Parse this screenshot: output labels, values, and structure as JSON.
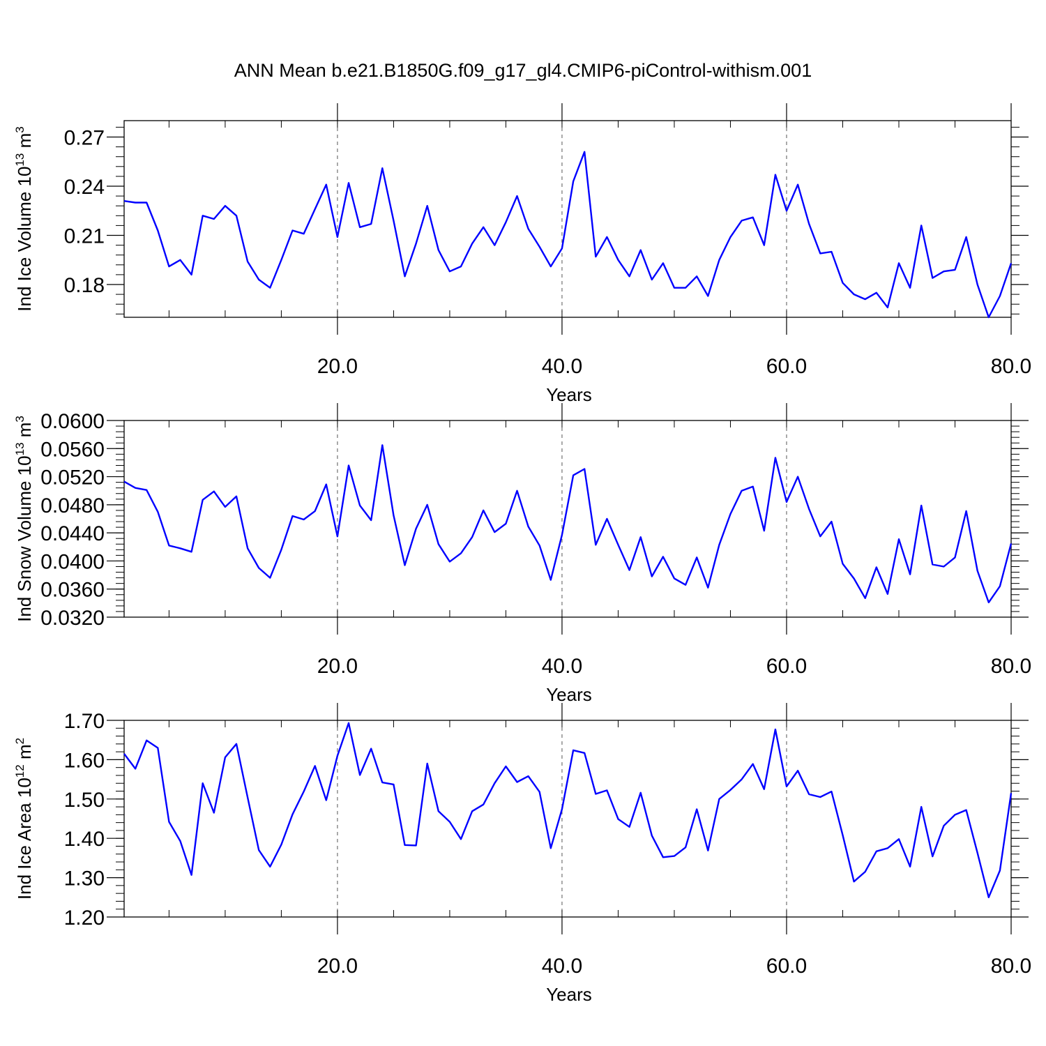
{
  "title": "ANN Mean b.e21.B1850G.f09_g17_gl4.CMIP6-piControl-withism.001",
  "line_color": "#0000ff",
  "chart_data": [
    {
      "type": "line",
      "ylabel_parts": [
        "Ind Ice Volume 10",
        "13",
        " m",
        "3"
      ],
      "xlabel": "Years",
      "xlim": [
        1,
        80
      ],
      "ylim": [
        0.16,
        0.28
      ],
      "xticks": [
        20,
        40,
        60,
        80
      ],
      "xtick_labels": [
        "20.0",
        "40.0",
        "60.0",
        "80.0"
      ],
      "yticks": [
        0.18,
        0.21,
        0.24,
        0.27
      ],
      "ytick_labels": [
        "0.18",
        "0.21",
        "0.24",
        "0.27"
      ],
      "grid_x": [
        20,
        40,
        60
      ],
      "series": [
        {
          "x": [
            1,
            2,
            3,
            4,
            5,
            6,
            7,
            8,
            9,
            10,
            11,
            12,
            13,
            14,
            15,
            16,
            17,
            18,
            19,
            20,
            21,
            22,
            23,
            24,
            25,
            26,
            27,
            28,
            29,
            30,
            31,
            32,
            33,
            34,
            35,
            36,
            37,
            38,
            39,
            40,
            41,
            42,
            43,
            44,
            45,
            46,
            47,
            48,
            49,
            50,
            51,
            52,
            53,
            54,
            55,
            56,
            57,
            58,
            59,
            60,
            61,
            62,
            63,
            64,
            65,
            66,
            67,
            68,
            69,
            70,
            71,
            72,
            73,
            74,
            75,
            76,
            77,
            78,
            79,
            80
          ],
          "values": [
            0.231,
            0.23,
            0.23,
            0.213,
            0.191,
            0.195,
            0.186,
            0.222,
            0.22,
            0.228,
            0.222,
            0.194,
            0.183,
            0.178,
            0.195,
            0.213,
            0.211,
            0.226,
            0.241,
            0.209,
            0.242,
            0.215,
            0.217,
            0.251,
            0.219,
            0.185,
            0.205,
            0.228,
            0.201,
            0.188,
            0.191,
            0.205,
            0.215,
            0.204,
            0.218,
            0.234,
            0.214,
            0.203,
            0.191,
            0.202,
            0.243,
            0.261,
            0.197,
            0.209,
            0.195,
            0.185,
            0.201,
            0.183,
            0.193,
            0.178,
            0.178,
            0.185,
            0.173,
            0.195,
            0.209,
            0.219,
            0.221,
            0.204,
            0.247,
            0.225,
            0.241,
            0.217,
            0.199,
            0.2,
            0.181,
            0.174,
            0.171,
            0.175,
            0.166,
            0.193,
            0.178,
            0.216,
            0.184,
            0.188,
            0.189,
            0.209,
            0.18,
            0.16,
            0.173,
            0.193
          ]
        }
      ]
    },
    {
      "type": "line",
      "ylabel_parts": [
        "Ind Snow Volume 10",
        "13",
        " m",
        "3"
      ],
      "xlabel": "Years",
      "xlim": [
        1,
        80
      ],
      "ylim": [
        0.032,
        0.06
      ],
      "xticks": [
        20,
        40,
        60,
        80
      ],
      "xtick_labels": [
        "20.0",
        "40.0",
        "60.0",
        "80.0"
      ],
      "yticks": [
        0.032,
        0.036,
        0.04,
        0.044,
        0.048,
        0.052,
        0.056,
        0.06
      ],
      "ytick_labels": [
        "0.0320",
        "0.0360",
        "0.0400",
        "0.0440",
        "0.0480",
        "0.0520",
        "0.0560",
        "0.0600"
      ],
      "grid_x": [
        20,
        40,
        60
      ],
      "series": [
        {
          "x": [
            1,
            2,
            3,
            4,
            5,
            6,
            7,
            8,
            9,
            10,
            11,
            12,
            13,
            14,
            15,
            16,
            17,
            18,
            19,
            20,
            21,
            22,
            23,
            24,
            25,
            26,
            27,
            28,
            29,
            30,
            31,
            32,
            33,
            34,
            35,
            36,
            37,
            38,
            39,
            40,
            41,
            42,
            43,
            44,
            45,
            46,
            47,
            48,
            49,
            50,
            51,
            52,
            53,
            54,
            55,
            56,
            57,
            58,
            59,
            60,
            61,
            62,
            63,
            64,
            65,
            66,
            67,
            68,
            69,
            70,
            71,
            72,
            73,
            74,
            75,
            76,
            77,
            78,
            79,
            80
          ],
          "values": [
            0.0513,
            0.0504,
            0.0501,
            0.047,
            0.0422,
            0.0418,
            0.0413,
            0.0487,
            0.0499,
            0.0477,
            0.0492,
            0.0418,
            0.039,
            0.0376,
            0.0416,
            0.0464,
            0.0459,
            0.0471,
            0.0509,
            0.0435,
            0.0536,
            0.0479,
            0.0458,
            0.0565,
            0.0465,
            0.0394,
            0.0446,
            0.048,
            0.0424,
            0.0399,
            0.0411,
            0.0434,
            0.0472,
            0.0441,
            0.0453,
            0.05,
            0.0449,
            0.0422,
            0.0373,
            0.0437,
            0.0522,
            0.0531,
            0.0423,
            0.046,
            0.0423,
            0.0387,
            0.0434,
            0.0378,
            0.0406,
            0.0375,
            0.0366,
            0.0405,
            0.0362,
            0.0423,
            0.0467,
            0.05,
            0.0506,
            0.0443,
            0.0547,
            0.0484,
            0.052,
            0.0474,
            0.0435,
            0.0456,
            0.0396,
            0.0375,
            0.0347,
            0.0391,
            0.0353,
            0.0431,
            0.0381,
            0.0479,
            0.0395,
            0.0392,
            0.0405,
            0.0471,
            0.0386,
            0.0341,
            0.0364,
            0.0425
          ]
        }
      ]
    },
    {
      "type": "line",
      "ylabel_parts": [
        "Ind Ice Area 10",
        "12",
        " m",
        "2"
      ],
      "xlabel": "Years",
      "xlim": [
        1,
        80
      ],
      "ylim": [
        1.2,
        1.7
      ],
      "xticks": [
        20,
        40,
        60,
        80
      ],
      "xtick_labels": [
        "20.0",
        "40.0",
        "60.0",
        "80.0"
      ],
      "yticks": [
        1.2,
        1.3,
        1.4,
        1.5,
        1.6,
        1.7
      ],
      "ytick_labels": [
        "1.20",
        "1.30",
        "1.40",
        "1.50",
        "1.60",
        "1.70"
      ],
      "grid_x": [
        20,
        40,
        60
      ],
      "series": [
        {
          "x": [
            1,
            2,
            3,
            4,
            5,
            6,
            7,
            8,
            9,
            10,
            11,
            12,
            13,
            14,
            15,
            16,
            17,
            18,
            19,
            20,
            21,
            22,
            23,
            24,
            25,
            26,
            27,
            28,
            29,
            30,
            31,
            32,
            33,
            34,
            35,
            36,
            37,
            38,
            39,
            40,
            41,
            42,
            43,
            44,
            45,
            46,
            47,
            48,
            49,
            50,
            51,
            52,
            53,
            54,
            55,
            56,
            57,
            58,
            59,
            60,
            61,
            62,
            63,
            64,
            65,
            66,
            67,
            68,
            69,
            70,
            71,
            72,
            73,
            74,
            75,
            76,
            77,
            78,
            79,
            80
          ],
          "values": [
            1.615,
            1.577,
            1.649,
            1.63,
            1.442,
            1.393,
            1.307,
            1.54,
            1.465,
            1.606,
            1.64,
            1.504,
            1.37,
            1.328,
            1.384,
            1.461,
            1.519,
            1.584,
            1.497,
            1.61,
            1.693,
            1.561,
            1.628,
            1.542,
            1.537,
            1.383,
            1.382,
            1.59,
            1.469,
            1.442,
            1.398,
            1.469,
            1.486,
            1.54,
            1.583,
            1.543,
            1.558,
            1.518,
            1.375,
            1.474,
            1.624,
            1.617,
            1.513,
            1.522,
            1.449,
            1.429,
            1.516,
            1.407,
            1.352,
            1.355,
            1.377,
            1.474,
            1.369,
            1.5,
            1.523,
            1.55,
            1.589,
            1.525,
            1.677,
            1.532,
            1.572,
            1.512,
            1.505,
            1.519,
            1.408,
            1.29,
            1.315,
            1.367,
            1.375,
            1.398,
            1.328,
            1.48,
            1.354,
            1.432,
            1.46,
            1.472,
            1.363,
            1.25,
            1.318,
            1.515
          ]
        }
      ]
    }
  ]
}
